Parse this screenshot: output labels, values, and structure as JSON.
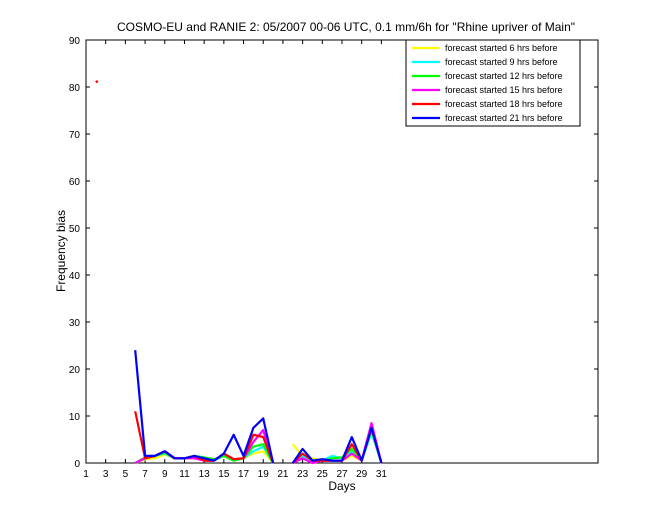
{
  "chart_data": {
    "type": "line",
    "title": "COSMO-EU and RANIE 2: 05/2007 00-06 UTC, 0.1 mm/6h for \"Rhine upriver of Main\"",
    "xlabel": "Days",
    "ylabel": "Frequency bias",
    "xlim": [
      1,
      53
    ],
    "ylim": [
      0,
      90
    ],
    "xticks": [
      1,
      3,
      5,
      7,
      9,
      11,
      13,
      15,
      17,
      19,
      21,
      23,
      25,
      27,
      29,
      31
    ],
    "yticks": [
      0,
      10,
      20,
      30,
      40,
      50,
      60,
      70,
      80,
      90
    ],
    "grid": false,
    "legend_position": "top-right",
    "series": [
      {
        "name": "forecast started 6 hrs before",
        "color": "#ffff00",
        "segments": [
          [
            [
              6,
              0
            ],
            [
              7,
              0.8
            ],
            [
              8,
              1
            ],
            [
              9,
              1.8
            ],
            [
              10,
              1
            ],
            [
              11,
              1
            ],
            [
              12,
              1
            ],
            [
              13,
              0.8
            ],
            [
              14,
              0.5
            ],
            [
              15,
              1.5
            ],
            [
              16,
              0.5
            ],
            [
              17,
              1
            ],
            [
              18,
              2
            ],
            [
              19,
              2.5
            ],
            [
              20,
              0
            ]
          ],
          [
            [
              22,
              4
            ],
            [
              23,
              1.5
            ],
            [
              24,
              1
            ],
            [
              25,
              0.5
            ],
            [
              26,
              0.5
            ],
            [
              27,
              0.5
            ],
            [
              28,
              1.5
            ],
            [
              29,
              0.5
            ],
            [
              30,
              7
            ],
            [
              31,
              0
            ]
          ]
        ]
      },
      {
        "name": "forecast started 9 hrs before",
        "color": "#00ffff",
        "segments": [
          [
            [
              6,
              0
            ],
            [
              7,
              1
            ],
            [
              8,
              1.5
            ],
            [
              9,
              2
            ],
            [
              10,
              1
            ],
            [
              11,
              1
            ],
            [
              12,
              1.2
            ],
            [
              13,
              1
            ],
            [
              14,
              0.5
            ],
            [
              15,
              1.5
            ],
            [
              16,
              0.5
            ],
            [
              17,
              1
            ],
            [
              18,
              2.5
            ],
            [
              19,
              3.5
            ],
            [
              20,
              0
            ]
          ],
          [
            [
              22,
              0
            ],
            [
              23,
              1.5
            ],
            [
              24,
              0.5
            ],
            [
              25,
              0.5
            ],
            [
              26,
              1.5
            ],
            [
              27,
              1
            ],
            [
              28,
              2.5
            ],
            [
              29,
              0.5
            ],
            [
              30,
              6.5
            ],
            [
              31,
              0
            ]
          ]
        ]
      },
      {
        "name": "forecast started 12 hrs before",
        "color": "#00ff00",
        "segments": [
          [
            [
              6,
              0
            ],
            [
              7,
              1.2
            ],
            [
              8,
              1.5
            ],
            [
              9,
              2.2
            ],
            [
              10,
              1
            ],
            [
              11,
              1
            ],
            [
              12,
              1.5
            ],
            [
              13,
              1.2
            ],
            [
              14,
              0.8
            ],
            [
              15,
              1.5
            ],
            [
              16,
              0.5
            ],
            [
              17,
              1
            ],
            [
              18,
              3.5
            ],
            [
              19,
              4
            ],
            [
              20,
              0
            ]
          ],
          [
            [
              22,
              0
            ],
            [
              23,
              2
            ],
            [
              24,
              0.5
            ],
            [
              25,
              0.5
            ],
            [
              26,
              1
            ],
            [
              27,
              1.2
            ],
            [
              28,
              3
            ],
            [
              29,
              0.5
            ],
            [
              30,
              7
            ],
            [
              31,
              0
            ]
          ]
        ]
      },
      {
        "name": "forecast started 15 hrs before",
        "color": "#ff00ff",
        "segments": [
          [
            [
              6,
              0
            ],
            [
              7,
              1
            ],
            [
              8,
              1.5
            ],
            [
              9,
              2.5
            ],
            [
              10,
              1
            ],
            [
              11,
              1
            ],
            [
              12,
              1
            ],
            [
              13,
              0.5
            ],
            [
              14,
              0.5
            ],
            [
              15,
              2
            ],
            [
              16,
              0.8
            ],
            [
              17,
              1
            ],
            [
              18,
              4.5
            ],
            [
              19,
              7
            ],
            [
              20,
              0
            ]
          ],
          [
            [
              22,
              0
            ],
            [
              23,
              1
            ],
            [
              24,
              0
            ],
            [
              25,
              0.5
            ],
            [
              26,
              0.5
            ],
            [
              27,
              0.5
            ],
            [
              28,
              2
            ],
            [
              29,
              0.5
            ],
            [
              30,
              8.5
            ],
            [
              31,
              0
            ]
          ]
        ]
      },
      {
        "name": "forecast started 18 hrs before",
        "color": "#ff0000",
        "segments": [
          [
            [
              2,
              81
            ],
            [
              2.2,
              81.3
            ]
          ],
          [
            [
              6,
              11
            ],
            [
              7,
              1
            ],
            [
              8,
              1.5
            ],
            [
              9,
              2.5
            ],
            [
              10,
              1
            ],
            [
              11,
              1
            ],
            [
              12,
              1.5
            ],
            [
              13,
              0.5
            ],
            [
              14,
              0.5
            ],
            [
              15,
              2
            ],
            [
              16,
              0.8
            ],
            [
              17,
              1
            ],
            [
              18,
              6
            ],
            [
              19,
              5.5
            ],
            [
              20,
              0
            ]
          ],
          [
            [
              22,
              0
            ],
            [
              23,
              2
            ],
            [
              24,
              0.5
            ],
            [
              25,
              0.5
            ],
            [
              26,
              0.5
            ],
            [
              27,
              0.5
            ],
            [
              28,
              4
            ],
            [
              29,
              0.5
            ],
            [
              30,
              7.5
            ],
            [
              31,
              0
            ]
          ]
        ]
      },
      {
        "name": "forecast started 21 hrs before",
        "color": "#0000ff",
        "segments": [
          [
            [
              6,
              24
            ],
            [
              7,
              1.5
            ],
            [
              8,
              1.5
            ],
            [
              9,
              2.5
            ],
            [
              10,
              1
            ],
            [
              11,
              1
            ],
            [
              12,
              1.5
            ],
            [
              13,
              1
            ],
            [
              14,
              0.5
            ],
            [
              15,
              2
            ],
            [
              16,
              6
            ],
            [
              17,
              1.5
            ],
            [
              18,
              7.5
            ],
            [
              19,
              9.5
            ],
            [
              20,
              0
            ]
          ],
          [
            [
              22,
              0
            ],
            [
              23,
              3
            ],
            [
              24,
              0.5
            ],
            [
              25,
              0.8
            ],
            [
              26,
              0.5
            ],
            [
              27,
              0.5
            ],
            [
              28,
              5.5
            ],
            [
              29,
              0.5
            ],
            [
              30,
              7.5
            ],
            [
              31,
              0
            ]
          ]
        ]
      }
    ]
  }
}
